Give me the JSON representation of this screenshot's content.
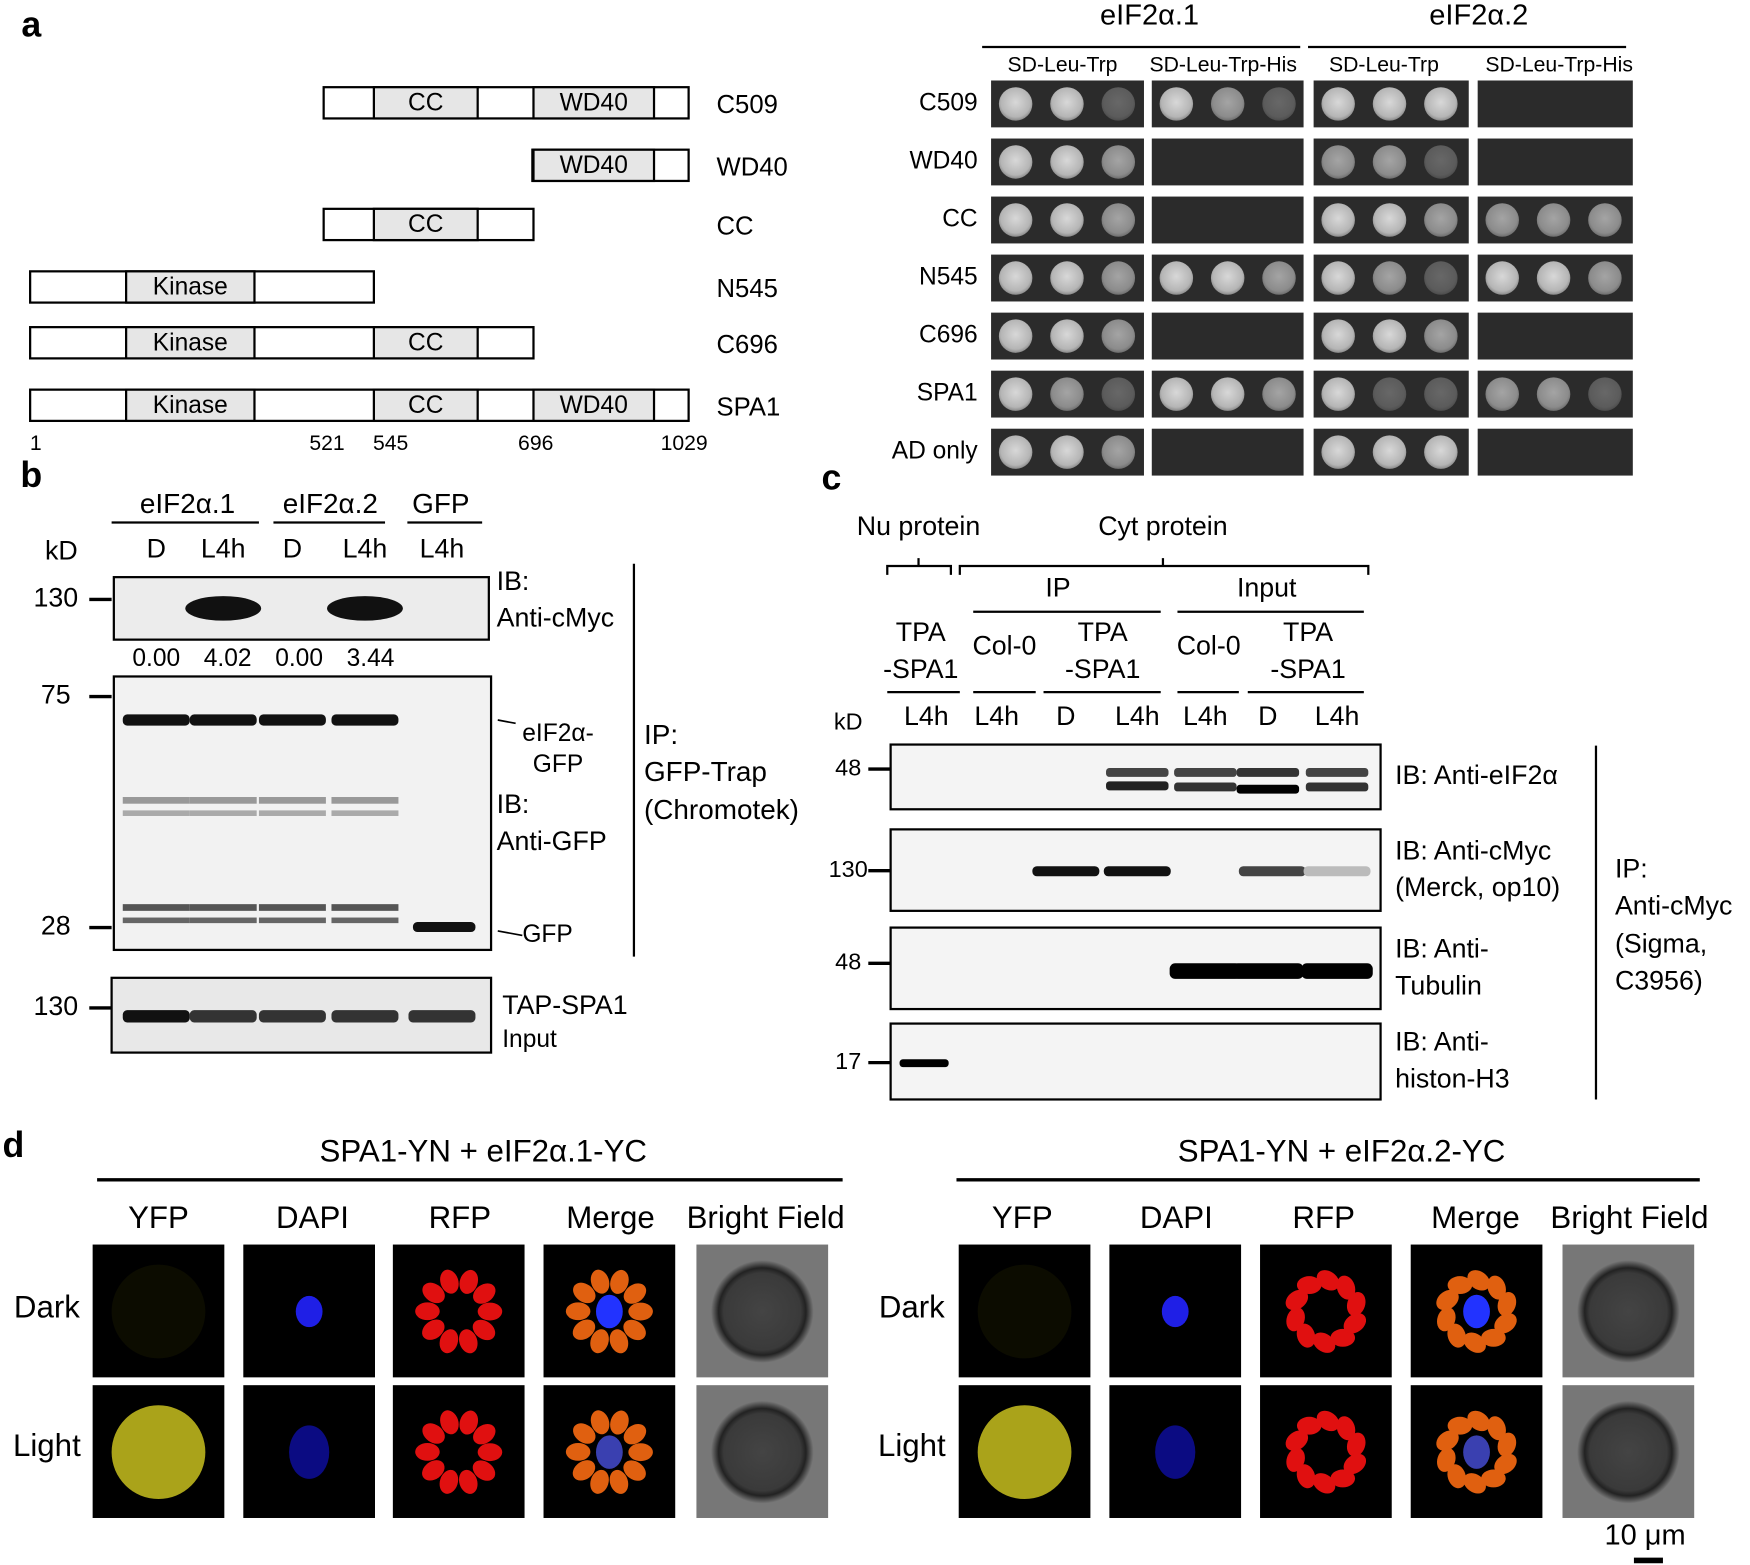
{
  "panel_a": {
    "label": "a",
    "constructs": [
      {
        "name": "C509",
        "domains": [
          "CC",
          "WD40"
        ]
      },
      {
        "name": "WD40",
        "domains": [
          "WD40"
        ]
      },
      {
        "name": "CC",
        "domains": [
          "CC"
        ]
      },
      {
        "name": "N545",
        "domains": [
          "Kinase"
        ]
      },
      {
        "name": "C696",
        "domains": [
          "Kinase",
          "CC"
        ]
      },
      {
        "name": "SPA1",
        "domains": [
          "Kinase",
          "CC",
          "WD40"
        ]
      }
    ],
    "positions": [
      "1",
      "521",
      "545",
      "696",
      "1029"
    ],
    "yeast": {
      "groups": [
        "eIF2α.1",
        "eIF2α.2"
      ],
      "media": [
        "SD-Leu-Trp",
        "SD-Leu-Trp-His",
        "SD-Leu-Trp",
        "SD-Leu-Trp-His"
      ],
      "rows": [
        "C509",
        "WD40",
        "CC",
        "N545",
        "C696",
        "SPA1",
        "AD only"
      ]
    }
  },
  "panel_b": {
    "label": "b",
    "groups": [
      "eIF2α.1",
      "eIF2α.2",
      "GFP"
    ],
    "lanes": [
      "D",
      "L4h",
      "D",
      "L4h",
      "L4h"
    ],
    "kd": "kD",
    "markers": [
      "130",
      "75",
      "28",
      "130"
    ],
    "quant": [
      "0.00",
      "4.02",
      "0.00",
      "3.44"
    ],
    "ib_cmyc": [
      "IB:",
      "Anti-cMyc"
    ],
    "ib_gfp": [
      "IB:",
      "Anti-GFP"
    ],
    "arrow_fusion": [
      "eIF2α-",
      "GFP"
    ],
    "arrow_gfp": "GFP",
    "ip": [
      "IP:",
      "GFP-Trap",
      "(Chromotek)"
    ],
    "input": [
      "TAP-SPA1",
      "Input"
    ]
  },
  "panel_c": {
    "label": "c",
    "fractions": [
      "Nu protein",
      "Cyt protein"
    ],
    "sections": [
      "IP",
      "Input"
    ],
    "genotypes": [
      [
        "TPA",
        "-SPA1"
      ],
      [
        "Col-0"
      ],
      [
        "TPA",
        "-SPA1"
      ],
      [
        "Col-0"
      ],
      [
        "TPA",
        "-SPA1"
      ]
    ],
    "kd": "kD",
    "lanes": [
      "L4h",
      "L4h",
      "D",
      "L4h",
      "L4h",
      "D",
      "L4h"
    ],
    "blots": [
      {
        "marker": "48",
        "label": [
          "IB: Anti-eIF2α"
        ]
      },
      {
        "marker": "130",
        "label": [
          "IB: Anti-cMyc",
          "(Merck, op10)"
        ]
      },
      {
        "marker": "48",
        "label": [
          "IB: Anti-",
          "Tubulin"
        ]
      },
      {
        "marker": "17",
        "label": [
          "IB: Anti-",
          "histon-H3"
        ]
      }
    ],
    "ip": [
      "IP:",
      "Anti-cMyc",
      "(Sigma,",
      "C3956)"
    ]
  },
  "panel_d": {
    "label": "d",
    "groups": [
      {
        "title": "SPA1-YN + eIF2α.1-YC",
        "channels": [
          "YFP",
          "DAPI",
          "RFP",
          "Merge",
          "Bright Field"
        ],
        "rows": [
          "Dark",
          "Light"
        ]
      },
      {
        "title": "SPA1-YN + eIF2α.2-YC",
        "channels": [
          "YFP",
          "DAPI",
          "RFP",
          "Merge",
          "Bright Field"
        ],
        "rows": [
          "Dark",
          "Light"
        ]
      }
    ],
    "scale_bar": "10 μm"
  }
}
